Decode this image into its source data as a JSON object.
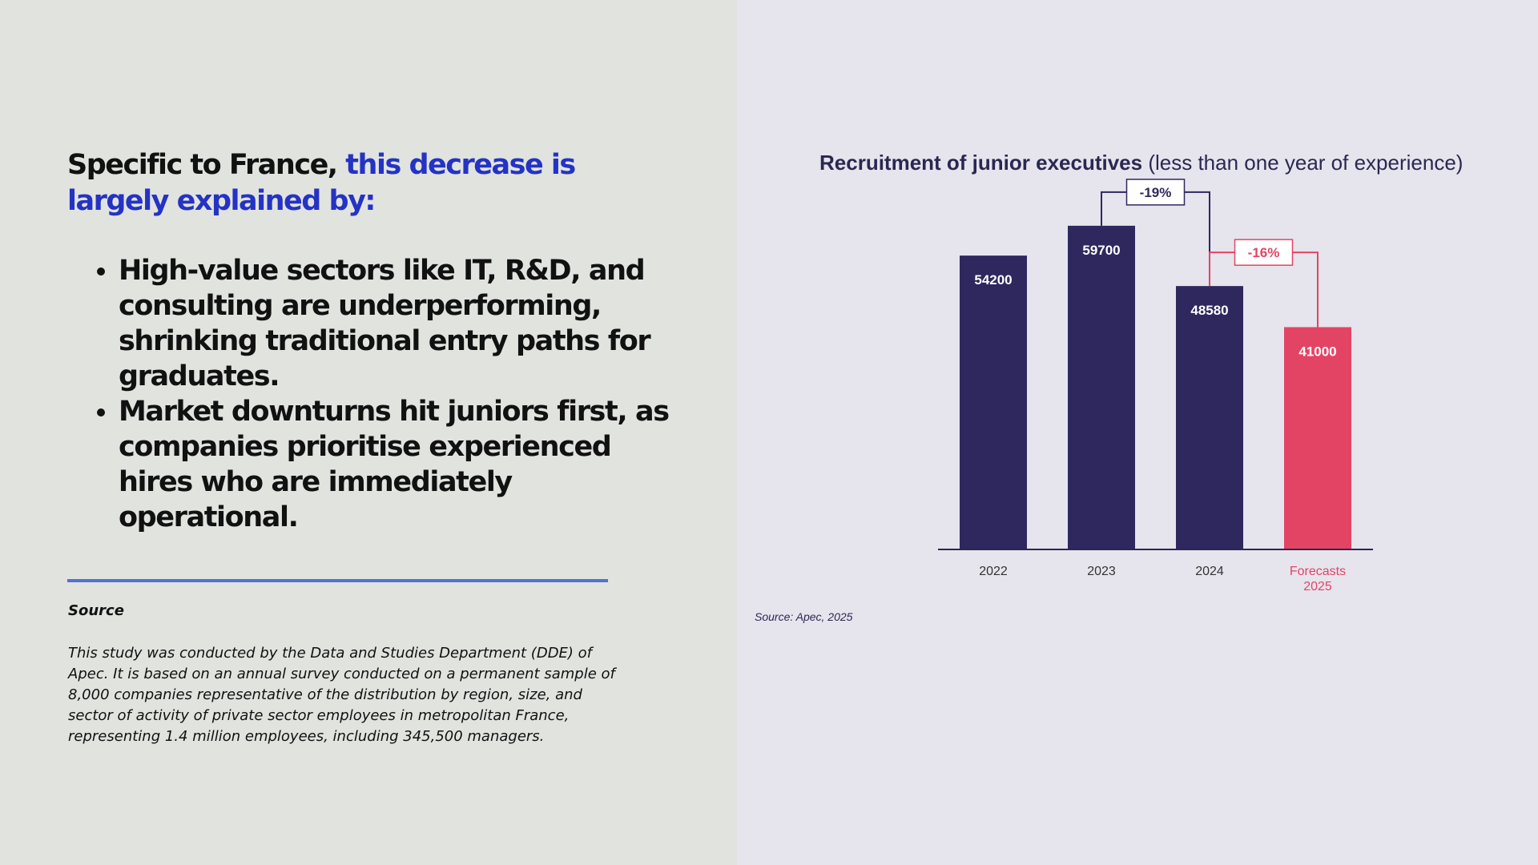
{
  "left": {
    "headline_part1": "Specific to France,",
    "headline_part2": "this decrease is largely explained by:",
    "bullets": [
      "High-value sectors like IT, R&D, and consulting are underperforming, shrinking traditional entry paths for graduates.",
      "Market downturns hit juniors first, as companies prioritise experienced hires who are immediately operational."
    ],
    "source_title": "Source",
    "source_text": "This study was conducted by the Data and Studies Department (DDE) of Apec. It is based on an annual survey conducted on a permanent sample of 8,000 companies representative of the distribution by region, size, and sector of activity of private sector employees in metropolitan France, representing 1.4 million employees, including 345,500 managers."
  },
  "colors": {
    "left_background": "#e1e3df",
    "right_background": "#e6e4ed",
    "headline_accent": "#2433c4",
    "divider": "#5470d6",
    "bar_actual": "#2e285e",
    "bar_forecast": "#e44464",
    "chart_text": "#2a2850"
  },
  "chart_data": {
    "type": "bar",
    "title_bold": "Recruitment of junior executives",
    "title_rest": " (less than one year of experience)",
    "categories": [
      "2022",
      "2023",
      "2024",
      "Forecasts 2025"
    ],
    "values": [
      54200,
      59700,
      48580,
      41000
    ],
    "value_labels": [
      "54200",
      "59700",
      "48580",
      "41000"
    ],
    "forecast_flags": [
      false,
      false,
      false,
      true
    ],
    "annotations": [
      {
        "from": 1,
        "to": 2,
        "label": "-19%",
        "color": "#2e285e"
      },
      {
        "from": 2,
        "to": 3,
        "label": "-16%",
        "color": "#e44464"
      }
    ],
    "ylim": [
      0,
      65000
    ],
    "grid": false,
    "source": "Source: Apec, 2025"
  }
}
